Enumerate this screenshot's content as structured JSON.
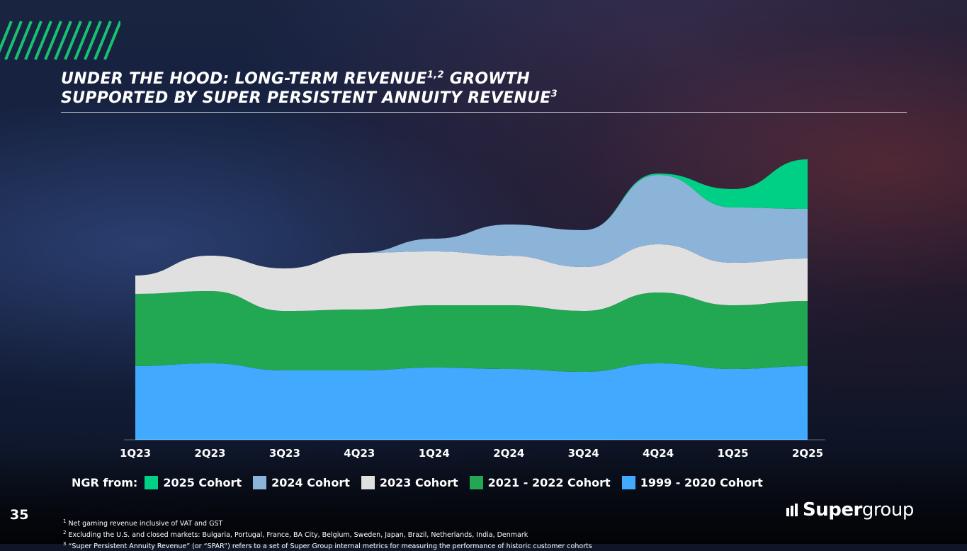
{
  "page": {
    "title_line1": "UNDER THE HOOD: LONG-TERM REVENUE",
    "title_line1_sup": "1,2",
    "title_line1_end": " GROWTH",
    "title_line2": "SUPPORTED BY SUPER PERSISTENT ANNUITY REVENUE",
    "title_line2_sup": "3",
    "page_number": "35",
    "legend_lead": "NGR from:",
    "logo_super": "Super",
    "logo_group": "group",
    "footnotes": [
      {
        "num": "1",
        "text": " Net gaming revenue inclusive of VAT and GST"
      },
      {
        "num": "2",
        "text": " Excluding the U.S. and closed markets: Bulgaria, Portugal, France, BA City, Belgium, Sweden, Japan, Brazil, Netherlands, India, Denmark"
      },
      {
        "num": "3",
        "text": " “Super Persistent Annuity Revenue” (or “SPAR”) refers to a set of Super Group internal metrics for measuring the performance of historic customer cohorts"
      }
    ],
    "colors": {
      "accent_green": "#1ed47a",
      "slash_green": "#16c172"
    }
  },
  "chart_data": {
    "type": "area",
    "stacked": true,
    "title": "",
    "xlabel": "",
    "ylabel": "",
    "ylim": [
      0,
      100
    ],
    "grid": false,
    "legend_position": "bottom",
    "categories": [
      "1Q23",
      "2Q23",
      "3Q23",
      "4Q23",
      "1Q24",
      "2Q24",
      "3Q24",
      "4Q24",
      "1Q25",
      "2Q25"
    ],
    "series": [
      {
        "name": "1999 - 2020 Cohort",
        "color": "#41aaff",
        "values": [
          26,
          27,
          24.5,
          24.5,
          25.5,
          25,
          24,
          27,
          25,
          26
        ]
      },
      {
        "name": "2021 - 2022 Cohort",
        "color": "#22a752",
        "values": [
          25.5,
          25.5,
          21,
          21.5,
          22,
          22.5,
          21.5,
          25,
          22.5,
          23
        ]
      },
      {
        "name": "2023 Cohort",
        "color": "#e0e0e0",
        "values": [
          6.5,
          12.5,
          15,
          20,
          19,
          17.5,
          15.5,
          17,
          15,
          15
        ]
      },
      {
        "name": "2024 Cohort",
        "color": "#8cb4d8",
        "values": [
          0,
          0,
          0,
          0,
          4.5,
          11,
          13,
          24.5,
          19.5,
          17.5
        ]
      },
      {
        "name": "2025 Cohort",
        "color": "#00d086",
        "values": [
          0,
          0,
          0,
          0,
          0,
          0,
          0,
          0.5,
          6.5,
          17.5
        ]
      }
    ]
  }
}
